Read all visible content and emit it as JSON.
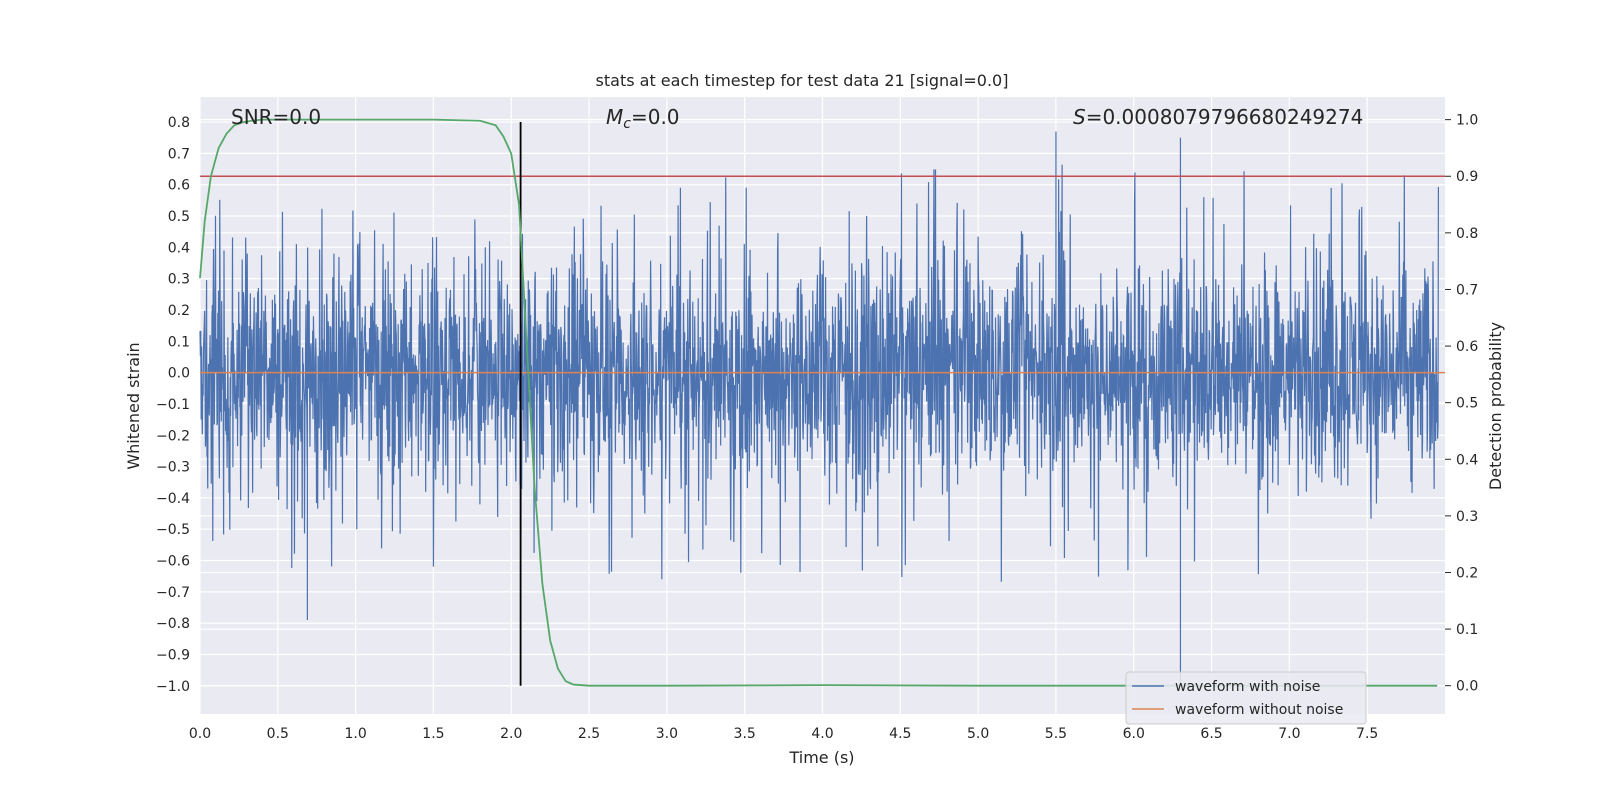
{
  "chart_data": {
    "type": "line",
    "title": "stats at each timestep for test data 21 [signal=0.0]",
    "xlabel": "Time (s)",
    "ylabel": "Whitened strain",
    "y2label": "Detection probability",
    "xlim": [
      0.0,
      8.0
    ],
    "ylim": [
      -1.09,
      0.88
    ],
    "y2lim": [
      -0.05,
      1.04
    ],
    "x_ticks": [
      "0.0",
      "0.5",
      "1.0",
      "1.5",
      "2.0",
      "2.5",
      "3.0",
      "3.5",
      "4.0",
      "4.5",
      "5.0",
      "5.5",
      "6.0",
      "6.5",
      "7.0",
      "7.5"
    ],
    "y_ticks": [
      "0.8",
      "0.7",
      "0.6",
      "0.5",
      "0.4",
      "0.3",
      "0.2",
      "0.1",
      "0.0",
      "−0.1",
      "−0.2",
      "−0.3",
      "−0.4",
      "−0.5",
      "−0.6",
      "−0.7",
      "−0.8",
      "−0.9",
      "−1.0"
    ],
    "y2_ticks": [
      "1.0",
      "0.9",
      "0.8",
      "0.7",
      "0.6",
      "0.5",
      "0.4",
      "0.3",
      "0.2",
      "0.1",
      "0.0"
    ],
    "grid": true,
    "legend_position": "lower-right",
    "annotations": {
      "snr": "SNR=0.0",
      "mc_symbol": "M",
      "mc_sub": "c",
      "mc_value": "=0.0",
      "s_symbol": "S",
      "s_value": "=0.0008079796680249274"
    },
    "colors": {
      "noise": "#4c72b0",
      "clean": "#dd8452",
      "probability": "#55a868",
      "threshold": "#c44e52",
      "marker": "#000000",
      "background": "#eaeaf2"
    },
    "series": [
      {
        "name": "waveform with noise",
        "axis": "left",
        "style": "dense noise, amplitude envelope approx ±0.25 with peaks near ±0.7",
        "notable_peaks": [
          {
            "x": 0.69,
            "y": -0.79
          },
          {
            "x": 6.3,
            "y": -0.99
          },
          {
            "x": 5.5,
            "y": 0.77
          },
          {
            "x": 6.3,
            "y": 0.75
          }
        ]
      },
      {
        "name": "waveform without noise",
        "axis": "left",
        "x": [
          0.0,
          8.0
        ],
        "y": [
          0.0,
          0.0
        ]
      },
      {
        "name": "detection probability",
        "axis": "right",
        "x": [
          0.0,
          0.03,
          0.07,
          0.12,
          0.17,
          0.22,
          0.27,
          0.33,
          0.4,
          0.5,
          1.0,
          1.5,
          1.8,
          1.9,
          1.95,
          2.0,
          2.05,
          2.1,
          2.15,
          2.2,
          2.25,
          2.3,
          2.35,
          2.4,
          2.5,
          3.0,
          4.0,
          5.0,
          6.0,
          7.0,
          7.95
        ],
        "y": [
          0.72,
          0.82,
          0.9,
          0.95,
          0.975,
          0.99,
          0.995,
          0.998,
          1.0,
          1.0,
          1.0,
          1.0,
          0.998,
          0.99,
          0.97,
          0.94,
          0.85,
          0.6,
          0.35,
          0.18,
          0.08,
          0.03,
          0.008,
          0.002,
          0.0,
          0.0,
          0.001,
          0.0,
          0.0,
          0.0,
          0.0
        ]
      }
    ],
    "threshold": {
      "axis": "right",
      "y": 0.9
    },
    "vertical_marker": {
      "x": 2.06,
      "ymin": -1.0,
      "ymax": 0.8
    }
  }
}
